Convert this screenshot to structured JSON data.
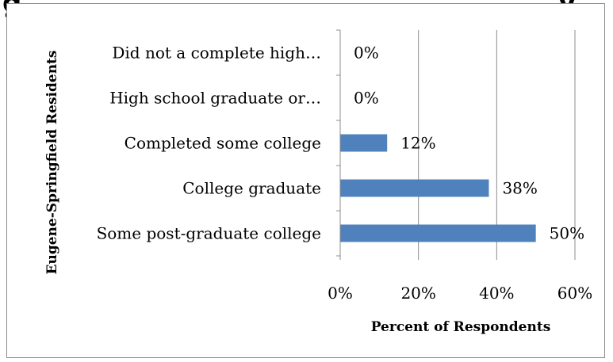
{
  "page": {
    "heading_fragment_left": "g",
    "heading_fragment_right": "y"
  },
  "chart_data": {
    "type": "bar",
    "orientation": "horizontal",
    "title": "",
    "xlabel": "Percent of Respondents",
    "ylabel": "Eugene-Springfield Residents",
    "categories": [
      "Did not a complete high…",
      "High school graduate or…",
      "Completed some college",
      "College graduate",
      "Some post-graduate college"
    ],
    "values": [
      0,
      0,
      12,
      38,
      50
    ],
    "data_labels": [
      "0%",
      "0%",
      "12%",
      "38%",
      "50%"
    ],
    "xlim": [
      0,
      60
    ],
    "x_ticks": [
      0,
      20,
      40,
      60
    ],
    "x_tick_labels": [
      "0%",
      "20%",
      "40%",
      "60%"
    ],
    "grid": "vertical-major",
    "legend": "none",
    "colors": {
      "bar": "#4f81bd",
      "gridline": "#8c8c8c",
      "axis": "#8c8c8c"
    }
  }
}
